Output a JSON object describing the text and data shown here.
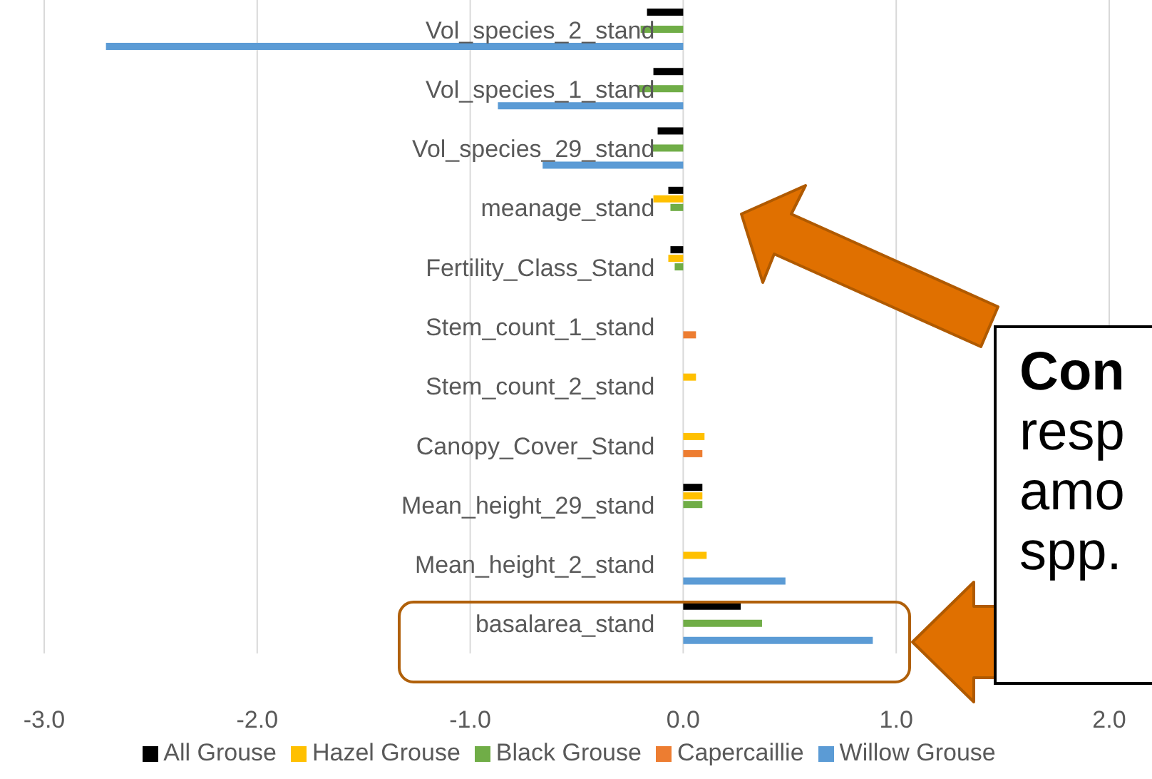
{
  "chart_data": {
    "type": "bar",
    "orientation": "horizontal",
    "categories": [
      "Vol_species_2_stand",
      "Vol_species_1_stand",
      "Vol_species_29_stand",
      "meanage_stand",
      "Fertility_Class_Stand",
      "Stem_count_1_stand",
      "Stem_count_2_stand",
      "Canopy_Cover_Stand",
      "Mean_height_29_stand",
      "Mean_height_2_stand",
      "basalarea_stand"
    ],
    "series": [
      {
        "name": "All Grouse",
        "color": "#000000",
        "values": [
          -0.17,
          -0.14,
          -0.12,
          -0.07,
          -0.06,
          null,
          null,
          null,
          0.09,
          null,
          0.27
        ]
      },
      {
        "name": "Hazel Grouse",
        "color": "#ffc000",
        "values": [
          null,
          null,
          null,
          -0.14,
          -0.07,
          null,
          0.06,
          0.1,
          0.09,
          0.11,
          null
        ]
      },
      {
        "name": "Black Grouse",
        "color": "#70ad47",
        "values": [
          -0.2,
          -0.21,
          -0.15,
          -0.06,
          -0.04,
          null,
          null,
          null,
          0.09,
          null,
          0.37
        ]
      },
      {
        "name": "Capercaillie",
        "color": "#ed7d31",
        "values": [
          null,
          null,
          null,
          null,
          null,
          0.06,
          null,
          0.09,
          null,
          null,
          null
        ]
      },
      {
        "name": "Willow Grouse",
        "color": "#5b9bd5",
        "values": [
          -2.71,
          -0.87,
          -0.66,
          null,
          null,
          null,
          null,
          null,
          null,
          0.48,
          0.89
        ]
      }
    ],
    "xlim": [
      -3,
      2
    ],
    "xticks": [
      {
        "value": -3,
        "label": "-3.0"
      },
      {
        "value": -2,
        "label": "-2.0"
      },
      {
        "value": -1,
        "label": "-1.0"
      },
      {
        "value": 0,
        "label": "0.0"
      },
      {
        "value": 1,
        "label": "1.0"
      },
      {
        "value": 2,
        "label": "2.0"
      }
    ],
    "grid": "x",
    "legend": "bottom",
    "annotations": [
      "Con",
      "resp",
      "amo",
      "spp."
    ]
  }
}
